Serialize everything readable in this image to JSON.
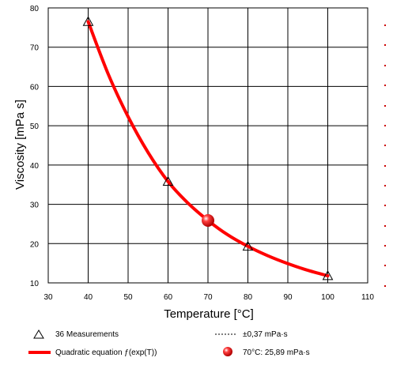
{
  "chart_data": {
    "type": "line",
    "xlabel": "Temperature [°C]",
    "ylabel": "Viscosity [mPa s]",
    "xlim": [
      30,
      110
    ],
    "ylim": [
      10,
      80
    ],
    "x_ticks": [
      "30",
      "40",
      "50",
      "60",
      "70",
      "80",
      "90",
      "100",
      "110"
    ],
    "y_ticks": [
      "10",
      "20",
      "30",
      "40",
      "50",
      "60",
      "70",
      "80"
    ],
    "grid": true,
    "legend_position": "bottom",
    "series": [
      {
        "name": "36 Measurements",
        "kind": "scatter",
        "marker": "triangle",
        "color": "#cc0000",
        "points": [
          {
            "x": 40,
            "y": 76.5
          },
          {
            "x": 60,
            "y": 35.8
          },
          {
            "x": 80,
            "y": 19.3
          },
          {
            "x": 100,
            "y": 11.8
          }
        ]
      },
      {
        "name": "Quadratic equation ƒ(exp(T))",
        "kind": "line",
        "color": "#ff0000",
        "points": [
          {
            "x": 40,
            "y": 76.5
          },
          {
            "x": 45,
            "y": 63.2
          },
          {
            "x": 50,
            "y": 52.3
          },
          {
            "x": 55,
            "y": 43.2
          },
          {
            "x": 60,
            "y": 35.8
          },
          {
            "x": 65,
            "y": 30.3
          },
          {
            "x": 70,
            "y": 25.89
          },
          {
            "x": 75,
            "y": 22.2
          },
          {
            "x": 80,
            "y": 19.3
          },
          {
            "x": 85,
            "y": 16.9
          },
          {
            "x": 90,
            "y": 14.9
          },
          {
            "x": 95,
            "y": 13.2
          },
          {
            "x": 100,
            "y": 11.8
          }
        ]
      },
      {
        "name": "±0,37 mPa·s",
        "kind": "band",
        "color": "#000000"
      },
      {
        "name": "70°C: 25,89 mPa·s",
        "kind": "highlight",
        "color": "#ff0000",
        "points": [
          {
            "x": 70,
            "y": 25.89
          }
        ]
      }
    ]
  }
}
